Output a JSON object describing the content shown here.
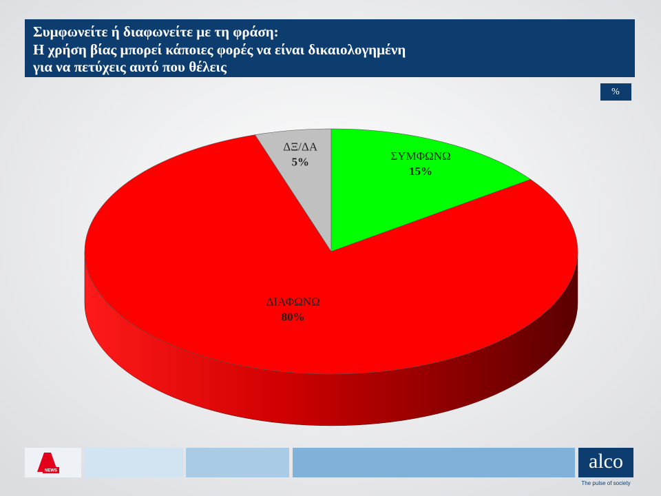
{
  "chart_data": {
    "type": "pie3d",
    "title": [
      "Συμφωνείτε ή διαφωνείτε με τη φράση:",
      "Η χρήση βίας μπορεί κάποιες φορές να είναι δικαιολογημένη",
      "για να πετύχεις αυτό που θέλεις"
    ],
    "unit": "%",
    "categories": [
      "ΣΥΜΦΩΝΩ",
      "ΔΙΑΦΩΝΩ",
      "ΔΞ/ΔΑ"
    ],
    "values": [
      15,
      80,
      5
    ],
    "value_labels": [
      "15%",
      "80%",
      "5%"
    ],
    "colors": [
      "#00ff00",
      "#ff0000",
      "#c0c0c0"
    ],
    "side_colors": [
      "#00a000",
      "#a00000",
      "#808080"
    ]
  },
  "footer": {
    "channel": "NEWS",
    "brand": "alco",
    "tagline": "The pulse of society"
  }
}
